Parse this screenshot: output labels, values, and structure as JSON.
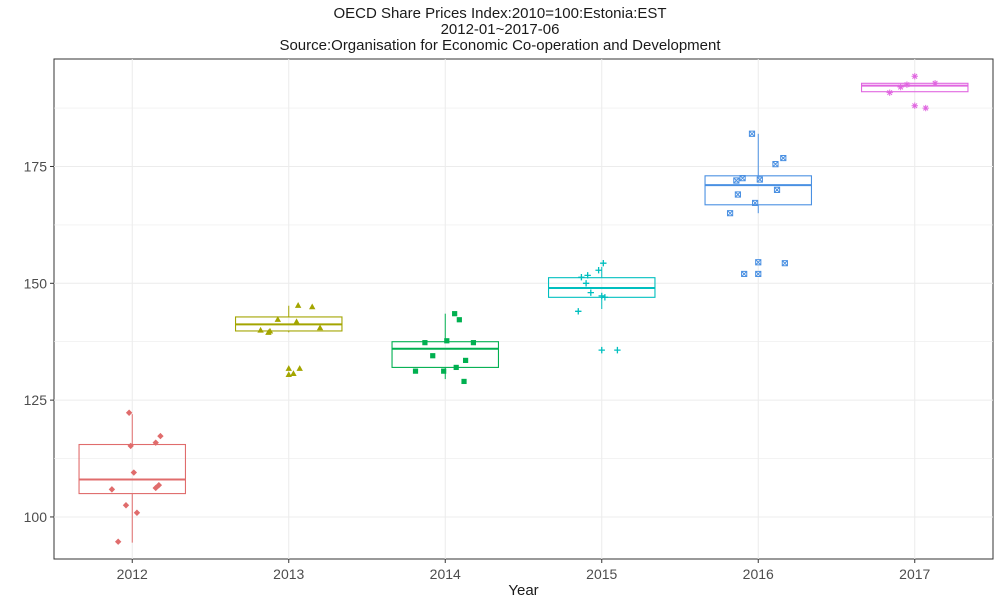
{
  "chart_data": {
    "type": "boxplot",
    "title": "OECD Share Prices Index:2010=100:Estonia:EST",
    "subtitle": "2012-01~2017-06",
    "source": "Source:Organisation for Economic Co-operation and Development",
    "xlabel": "Year",
    "ylabel": "",
    "categories": [
      "2012",
      "2013",
      "2014",
      "2015",
      "2016",
      "2017"
    ],
    "ylim": [
      91,
      198
    ],
    "yticks": [
      100,
      125,
      150,
      175
    ],
    "grid": true,
    "legend": "none",
    "series": [
      {
        "category": "2012",
        "color": "#e06c6c",
        "marker": "diamond",
        "box": {
          "min": 94.5,
          "q1": 105,
          "median": 108,
          "q3": 115.5,
          "max": 122
        },
        "points": [
          [
            -0.09,
            94.7
          ],
          [
            -0.13,
            105.9
          ],
          [
            0.03,
            100.9
          ],
          [
            -0.04,
            102.5
          ],
          [
            0.15,
            106.2
          ],
          [
            0.17,
            106.8
          ],
          [
            0.01,
            109.5
          ],
          [
            -0.01,
            115.2
          ],
          [
            0.15,
            115.9
          ],
          [
            0.18,
            117.3
          ],
          [
            -0.02,
            122.3
          ]
        ]
      },
      {
        "category": "2013",
        "color": "#a3a500",
        "marker": "triangle",
        "box": {
          "min": 139.5,
          "q1": 139.8,
          "median": 141.2,
          "q3": 142.8,
          "max": 145.2
        },
        "points": [
          [
            -0.18,
            140
          ],
          [
            -0.13,
            139.5
          ],
          [
            -0.12,
            139.8
          ],
          [
            -0.07,
            142.3
          ],
          [
            0.05,
            141.8
          ],
          [
            0.15,
            145
          ],
          [
            0.06,
            145.3
          ],
          [
            0.2,
            140.5
          ],
          [
            0,
            131.8
          ],
          [
            0.07,
            131.8
          ],
          [
            0,
            130.5
          ],
          [
            0.03,
            130.7
          ]
        ]
      },
      {
        "category": "2014",
        "color": "#00b050",
        "marker": "square",
        "box": {
          "min": 129.5,
          "q1": 132,
          "median": 136,
          "q3": 137.5,
          "max": 143.5
        },
        "points": [
          [
            -0.19,
            131.2
          ],
          [
            -0.13,
            137.3
          ],
          [
            -0.08,
            134.5
          ],
          [
            -0.01,
            131.2
          ],
          [
            0.01,
            137.7
          ],
          [
            0.06,
            143.5
          ],
          [
            0.09,
            142.2
          ],
          [
            0.07,
            132
          ],
          [
            0.13,
            133.5
          ],
          [
            0.18,
            137.3
          ],
          [
            0.12,
            129
          ]
        ]
      },
      {
        "category": "2015",
        "color": "#00bfbf",
        "marker": "plus",
        "box": {
          "min": 144.5,
          "q1": 147,
          "median": 149,
          "q3": 151.2,
          "max": 153.5
        },
        "points": [
          [
            -0.15,
            144
          ],
          [
            -0.13,
            151.3
          ],
          [
            -0.09,
            151.7
          ],
          [
            -0.1,
            150
          ],
          [
            -0.07,
            148
          ],
          [
            0,
            147.3
          ],
          [
            -0.02,
            152.8
          ],
          [
            0.01,
            154.3
          ],
          [
            0.02,
            147
          ],
          [
            0,
            135.7
          ],
          [
            0.1,
            135.7
          ]
        ]
      },
      {
        "category": "2016",
        "color": "#4a90e2",
        "marker": "boxcross",
        "box": {
          "min": 165,
          "q1": 166.8,
          "median": 171,
          "q3": 173,
          "max": 182
        },
        "points": [
          [
            -0.18,
            165
          ],
          [
            -0.14,
            172
          ],
          [
            -0.1,
            172.5
          ],
          [
            -0.13,
            169
          ],
          [
            -0.04,
            182
          ],
          [
            -0.02,
            167.2
          ],
          [
            0.01,
            172.2
          ],
          [
            0.11,
            175.5
          ],
          [
            0.12,
            170
          ],
          [
            0.16,
            176.8
          ],
          [
            -0.09,
            152
          ],
          [
            0.17,
            154.3
          ],
          [
            0,
            152
          ],
          [
            0,
            154.5
          ]
        ]
      },
      {
        "category": "2017",
        "color": "#e066e0",
        "marker": "asterisk",
        "box": {
          "min": 191,
          "q1": 191,
          "median": 192.3,
          "q3": 192.8,
          "max": 192.8
        },
        "points": [
          [
            -0.16,
            190.8
          ],
          [
            -0.09,
            192
          ],
          [
            -0.05,
            192.5
          ],
          [
            0,
            194.3
          ],
          [
            0,
            188
          ],
          [
            0.07,
            187.5
          ],
          [
            0.13,
            192.8
          ]
        ]
      }
    ]
  }
}
